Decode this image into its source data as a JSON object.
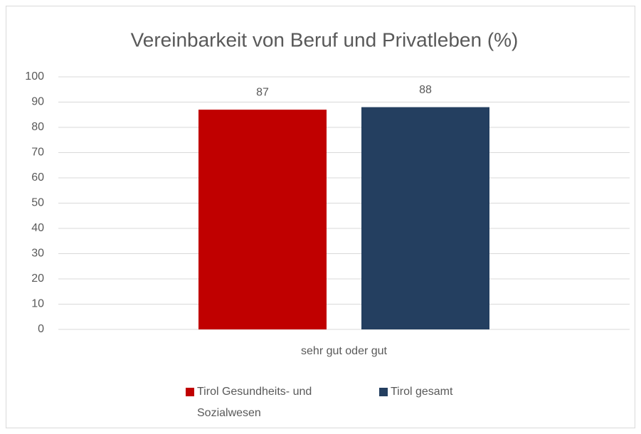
{
  "chart_data": {
    "type": "bar",
    "title": "Vereinbarkeit von Beruf und Privatleben (%)",
    "categories": [
      "sehr gut oder gut"
    ],
    "series": [
      {
        "name": "Tirol Gesundheits- und Sozialwesen",
        "color": "#c00000",
        "values": [
          87
        ]
      },
      {
        "name": "Tirol gesamt",
        "color": "#243f60",
        "values": [
          88
        ]
      }
    ],
    "ylim": [
      0,
      100
    ],
    "yticks": [
      0,
      10,
      20,
      30,
      40,
      50,
      60,
      70,
      80,
      90,
      100
    ],
    "grid": true,
    "legend": "bottom"
  }
}
